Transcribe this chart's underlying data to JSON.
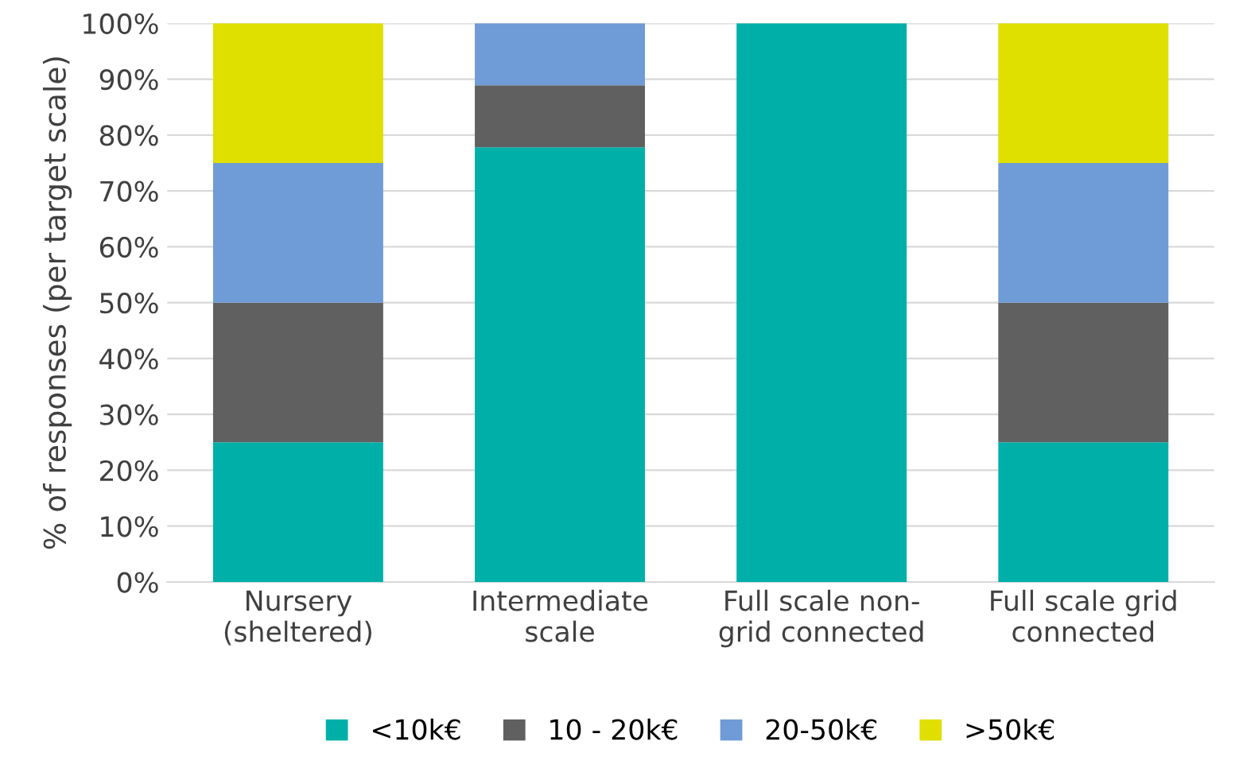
{
  "chart_data": {
    "type": "bar",
    "stacked": true,
    "ylabel": "% of responses (per target scale)",
    "categories": [
      "Nursery\n(sheltered)",
      "Intermediate\nscale",
      "Full scale non-\ngrid connected",
      "Full scale grid\nconnected"
    ],
    "series": [
      {
        "name": "<10k€",
        "color": "#00b0a8",
        "values": [
          25,
          77.8,
          100,
          25
        ]
      },
      {
        "name": "10 - 20k€",
        "color": "#606060",
        "values": [
          25,
          11.1,
          0,
          25
        ]
      },
      {
        "name": "20-50k€",
        "color": "#6f9bd6",
        "values": [
          25,
          11.1,
          0,
          25
        ]
      },
      {
        "name": ">50k€",
        "color": "#dfdf00",
        "values": [
          25,
          0,
          0,
          25
        ]
      }
    ],
    "ylim": [
      0,
      100
    ],
    "yticks": [
      {
        "value": 0,
        "label": "0%"
      },
      {
        "value": 10,
        "label": "10%"
      },
      {
        "value": 20,
        "label": "20%"
      },
      {
        "value": 30,
        "label": "30%"
      },
      {
        "value": 40,
        "label": "40%"
      },
      {
        "value": 50,
        "label": "50%"
      },
      {
        "value": 60,
        "label": "60%"
      },
      {
        "value": 70,
        "label": "70%"
      },
      {
        "value": 80,
        "label": "80%"
      },
      {
        "value": 90,
        "label": "90%"
      },
      {
        "value": 100,
        "label": "100%"
      }
    ],
    "grid": "y",
    "legend": "bottom"
  }
}
